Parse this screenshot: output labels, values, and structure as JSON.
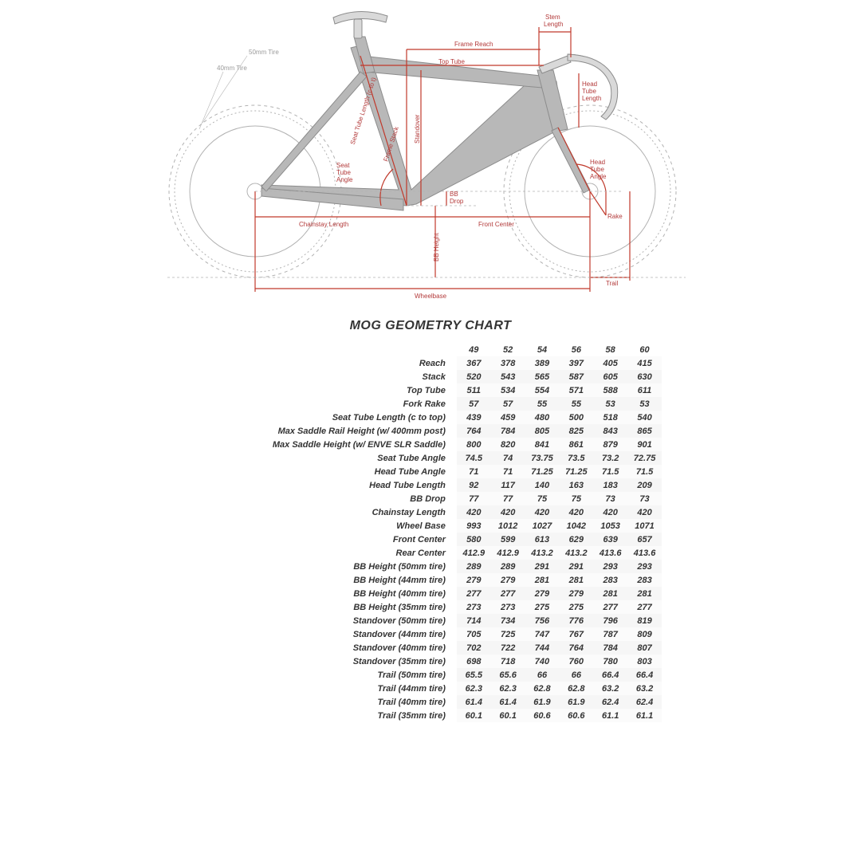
{
  "title": "MOG GEOMETRY CHART",
  "diagram": {
    "frame_fill": "#b8b8b8",
    "frame_stroke": "#8c8c8c",
    "line_red": "#c0392b",
    "line_grey": "#b2b2b2",
    "tire_dash": "4,4",
    "tire_inner_dash": "2,3",
    "labels": {
      "stem_length": "Stem\nLength",
      "frame_reach": "Frame Reach",
      "top_tube": "Top Tube",
      "head_tube_length": "Head\nTube\nLength",
      "head_tube_angle": "Head\nTube\nAngle",
      "seat_tube_angle": "Seat\nTube\nAngle",
      "seat_tube_length": "Seat Tube Length (c to t)",
      "frame_stack": "Frame Stack",
      "standover": "Standover",
      "bb_drop": "BB\nDrop",
      "bb_height": "BB Height",
      "chainstay_length": "Chainstay Length",
      "front_center": "Front Center",
      "rake": "Rake",
      "trail": "Trail",
      "wheelbase": "Wheelbase",
      "tire50": "50mm Tire",
      "tire40": "40mm Tire"
    }
  },
  "table": {
    "sizes": [
      "49",
      "52",
      "54",
      "56",
      "58",
      "60"
    ],
    "rows": [
      {
        "label": "Reach",
        "v": [
          "367",
          "378",
          "389",
          "397",
          "405",
          "415"
        ]
      },
      {
        "label": "Stack",
        "v": [
          "520",
          "543",
          "565",
          "587",
          "605",
          "630"
        ]
      },
      {
        "label": "Top Tube",
        "v": [
          "511",
          "534",
          "554",
          "571",
          "588",
          "611"
        ]
      },
      {
        "label": "Fork Rake",
        "v": [
          "57",
          "57",
          "55",
          "55",
          "53",
          "53"
        ]
      },
      {
        "label": "Seat Tube Length (c to top)",
        "v": [
          "439",
          "459",
          "480",
          "500",
          "518",
          "540"
        ]
      },
      {
        "label": "Max Saddle Rail Height (w/ 400mm post)",
        "v": [
          "764",
          "784",
          "805",
          "825",
          "843",
          "865"
        ]
      },
      {
        "label": "Max Saddle Height (w/ ENVE SLR Saddle)",
        "v": [
          "800",
          "820",
          "841",
          "861",
          "879",
          "901"
        ]
      },
      {
        "label": "Seat Tube Angle",
        "v": [
          "74.5",
          "74",
          "73.75",
          "73.5",
          "73.2",
          "72.75"
        ]
      },
      {
        "label": "Head Tube Angle",
        "v": [
          "71",
          "71",
          "71.25",
          "71.25",
          "71.5",
          "71.5"
        ]
      },
      {
        "label": "Head Tube Length",
        "v": [
          "92",
          "117",
          "140",
          "163",
          "183",
          "209"
        ]
      },
      {
        "label": "BB Drop",
        "v": [
          "77",
          "77",
          "75",
          "75",
          "73",
          "73"
        ]
      },
      {
        "label": "Chainstay Length",
        "v": [
          "420",
          "420",
          "420",
          "420",
          "420",
          "420"
        ]
      },
      {
        "label": "Wheel Base",
        "v": [
          "993",
          "1012",
          "1027",
          "1042",
          "1053",
          "1071"
        ]
      },
      {
        "label": "Front Center",
        "v": [
          "580",
          "599",
          "613",
          "629",
          "639",
          "657"
        ]
      },
      {
        "label": "Rear Center",
        "v": [
          "412.9",
          "412.9",
          "413.2",
          "413.2",
          "413.6",
          "413.6"
        ]
      },
      {
        "label": "BB Height (50mm tire)",
        "v": [
          "289",
          "289",
          "291",
          "291",
          "293",
          "293"
        ]
      },
      {
        "label": "BB Height (44mm tire)",
        "v": [
          "279",
          "279",
          "281",
          "281",
          "283",
          "283"
        ]
      },
      {
        "label": "BB Height (40mm tire)",
        "v": [
          "277",
          "277",
          "279",
          "279",
          "281",
          "281"
        ]
      },
      {
        "label": "BB Height (35mm tire)",
        "v": [
          "273",
          "273",
          "275",
          "275",
          "277",
          "277"
        ]
      },
      {
        "label": "Standover (50mm tire)",
        "v": [
          "714",
          "734",
          "756",
          "776",
          "796",
          "819"
        ]
      },
      {
        "label": "Standover (44mm tire)",
        "v": [
          "705",
          "725",
          "747",
          "767",
          "787",
          "809"
        ]
      },
      {
        "label": "Standover (40mm tire)",
        "v": [
          "702",
          "722",
          "744",
          "764",
          "784",
          "807"
        ]
      },
      {
        "label": "Standover (35mm tire)",
        "v": [
          "698",
          "718",
          "740",
          "760",
          "780",
          "803"
        ]
      },
      {
        "label": "Trail (50mm tire)",
        "v": [
          "65.5",
          "65.6",
          "66",
          "66",
          "66.4",
          "66.4"
        ]
      },
      {
        "label": "Trail (44mm tire)",
        "v": [
          "62.3",
          "62.3",
          "62.8",
          "62.8",
          "63.2",
          "63.2"
        ]
      },
      {
        "label": "Trail (40mm tire)",
        "v": [
          "61.4",
          "61.4",
          "61.9",
          "61.9",
          "62.4",
          "62.4"
        ]
      },
      {
        "label": "Trail (35mm tire)",
        "v": [
          "60.1",
          "60.1",
          "60.6",
          "60.6",
          "61.1",
          "61.1"
        ]
      }
    ]
  }
}
